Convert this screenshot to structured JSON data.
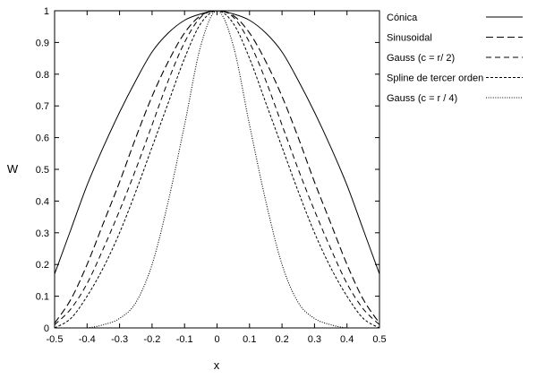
{
  "chart_data": {
    "type": "line",
    "xlabel": "x",
    "ylabel": "W",
    "xlim": [
      -0.5,
      0.5
    ],
    "ylim": [
      0,
      1
    ],
    "xticks": [
      -0.5,
      -0.4,
      -0.3,
      -0.2,
      -0.1,
      0,
      0.1,
      0.2,
      0.3,
      0.4,
      0.5
    ],
    "xtick_labels": [
      "-0.5",
      "-0.4",
      "-0.3",
      "-0.2",
      "-0.1",
      "0",
      "0.1",
      "0.2",
      "0.3",
      "0.4",
      "0.5"
    ],
    "yticks": [
      0,
      0.1,
      0.2,
      0.3,
      0.4,
      0.5,
      0.6,
      0.7,
      0.8,
      0.9,
      1
    ],
    "ytick_labels": [
      "0",
      "0.1",
      "0.2",
      "0.3",
      "0.4",
      "0.5",
      "0.6",
      "0.7",
      "0.8",
      "0.9",
      "1"
    ],
    "grid": false,
    "legend_position": "right, outside plot",
    "x": [
      -0.5,
      -0.45,
      -0.4,
      -0.35,
      -0.3,
      -0.25,
      -0.2,
      -0.15,
      -0.1,
      -0.05,
      0,
      0.05,
      0.1,
      0.15,
      0.2,
      0.25,
      0.3,
      0.35,
      0.4,
      0.45,
      0.5
    ],
    "series": [
      {
        "name": "Cónica",
        "dash": "solid",
        "values": [
          0.17,
          0.31,
          0.45,
          0.57,
          0.68,
          0.78,
          0.87,
          0.93,
          0.97,
          0.99,
          1.0,
          0.99,
          0.97,
          0.93,
          0.87,
          0.78,
          0.68,
          0.57,
          0.45,
          0.31,
          0.17
        ]
      },
      {
        "name": "Sinusoidal",
        "dash": "long",
        "values": [
          0.015,
          0.09,
          0.2,
          0.33,
          0.46,
          0.6,
          0.73,
          0.84,
          0.93,
          0.985,
          1.0,
          0.985,
          0.93,
          0.84,
          0.73,
          0.6,
          0.46,
          0.33,
          0.2,
          0.09,
          0.015
        ]
      },
      {
        "name": "Gauss (c = r/ 2)",
        "dash": "medium",
        "values": [
          0.01,
          0.06,
          0.14,
          0.25,
          0.37,
          0.5,
          0.64,
          0.78,
          0.9,
          0.98,
          1.0,
          0.98,
          0.9,
          0.78,
          0.64,
          0.5,
          0.37,
          0.25,
          0.14,
          0.06,
          0.01
        ]
      },
      {
        "name": "Spline de tercer orden",
        "dash": "short",
        "values": [
          0.0,
          0.03,
          0.1,
          0.19,
          0.3,
          0.43,
          0.57,
          0.71,
          0.85,
          0.96,
          1.0,
          0.96,
          0.85,
          0.71,
          0.57,
          0.43,
          0.3,
          0.19,
          0.1,
          0.03,
          0.0
        ]
      },
      {
        "name": "Gauss (c = r / 4)",
        "dash": "dotted",
        "values": [
          0.0,
          0.0,
          0.0,
          0.01,
          0.03,
          0.08,
          0.2,
          0.4,
          0.64,
          0.89,
          1.0,
          0.89,
          0.64,
          0.4,
          0.2,
          0.08,
          0.03,
          0.01,
          0.0,
          0.0,
          0.0
        ]
      }
    ]
  }
}
